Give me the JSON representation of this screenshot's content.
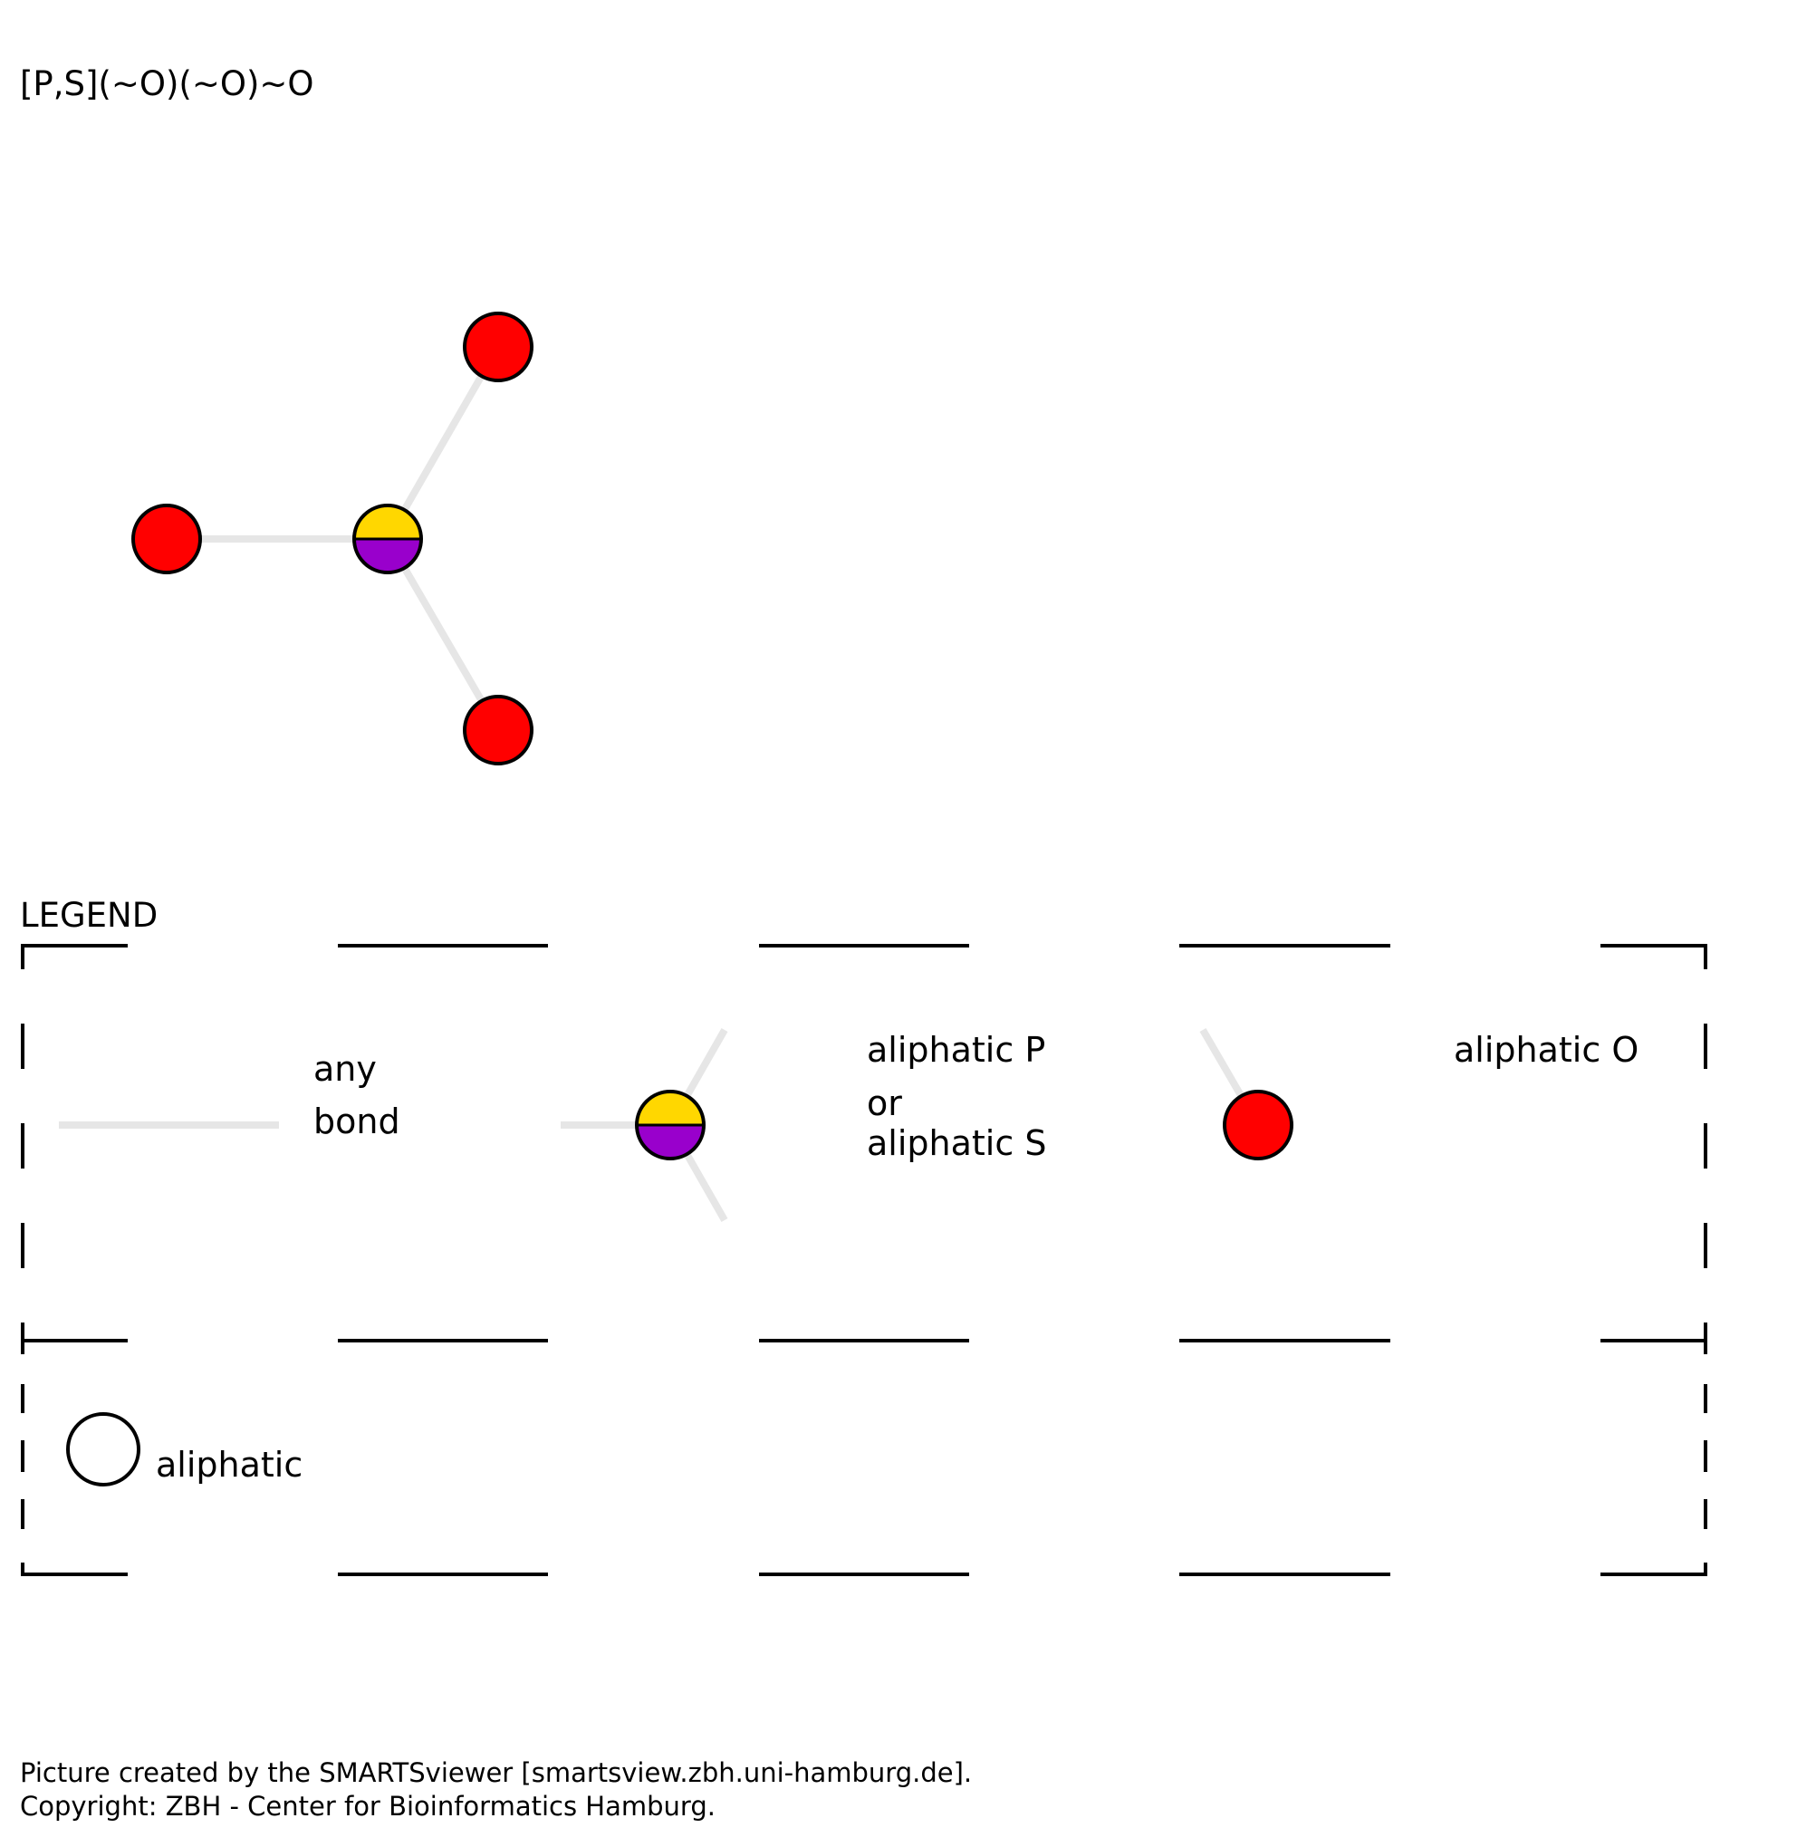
{
  "smarts": "[P,S](~O)(~O)~O",
  "colors": {
    "oxygen": "#ff0000",
    "phosphorus": "#9900cc",
    "sulfur": "#ffd700",
    "bond": "#e6e6e6",
    "outline": "#000000"
  },
  "legend": {
    "title": "LEGEND",
    "any_bond": [
      "any",
      "bond"
    ],
    "p_or_s": [
      "aliphatic P",
      "or",
      "aliphatic S"
    ],
    "oxygen": "aliphatic O",
    "aliphatic": "aliphatic"
  },
  "footer": {
    "line1": "Picture created by the SMARTSviewer [smartsview.zbh.uni-hamburg.de].",
    "line2": "Copyright: ZBH - Center for Bioinformatics Hamburg."
  }
}
